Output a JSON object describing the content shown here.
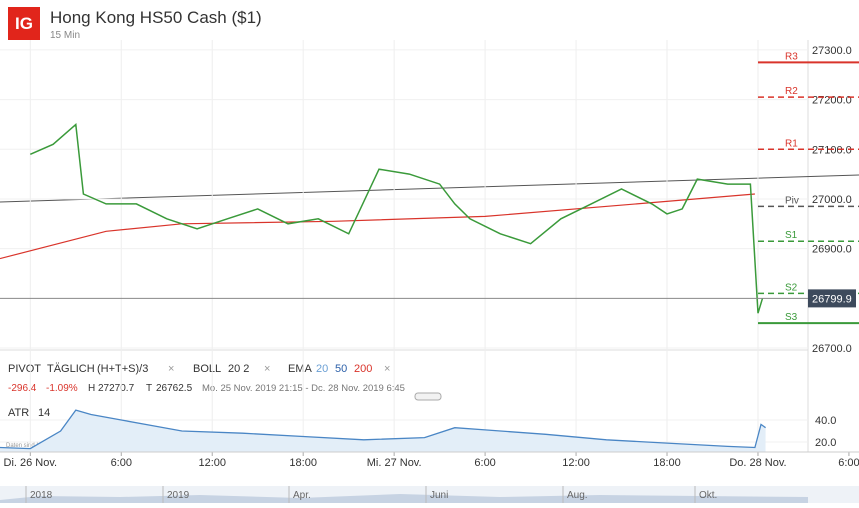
{
  "header": {
    "logo": "IG",
    "title": "Hong Kong HS50 Cash ($1)",
    "interval": "15 Min"
  },
  "legend": {
    "pivot": "PIVOT",
    "pivot_type": "TÄGLICH",
    "pivot_formula": "(H+T+S)/3",
    "boll": "BOLL",
    "boll_params": "20 2",
    "ema": "EMA",
    "ema_periods": [
      "20",
      "50",
      "200"
    ],
    "close_sign": "×"
  },
  "stats": {
    "change": "-296.4",
    "change_pct": "-1.09%",
    "high_label": "H",
    "high": "27270.7",
    "low_label": "T",
    "low": "26762.5",
    "range": "Mo. 25 Nov. 2019 21:15 - Dc. 28 Nov. 2019 6:45"
  },
  "chart_data": {
    "type": "line",
    "x": [
      0,
      1.5,
      3,
      3.5,
      5,
      7,
      9,
      11,
      13,
      15,
      17,
      19,
      21,
      23,
      25,
      27,
      28,
      29,
      31,
      33,
      35,
      37,
      39,
      41,
      42,
      43,
      44,
      46,
      47.5,
      48,
      48.3
    ],
    "values": [
      27090,
      27110,
      27150,
      27010,
      26990,
      26990,
      26960,
      26940,
      26960,
      26980,
      26950,
      26960,
      26930,
      27060,
      27050,
      27030,
      26990,
      26960,
      26930,
      26910,
      26960,
      26990,
      27020,
      26990,
      26970,
      26980,
      27040,
      27030,
      27030,
      26770,
      26800
    ],
    "ema200_x": [
      -2,
      5,
      10,
      20,
      30,
      40,
      47.8
    ],
    "ema200": [
      26880,
      26935,
      26950,
      26955,
      26965,
      26990,
      27010
    ],
    "color": "#3a9a3a",
    "ema200_color": "#d9342b",
    "xlim": [
      -2,
      51.3
    ],
    "ylim": [
      26696,
      27320
    ],
    "xticks": [
      {
        "value": 0,
        "label": "Di. 26 Nov."
      },
      {
        "value": 6,
        "label": "6:00"
      },
      {
        "value": 12,
        "label": "12:00"
      },
      {
        "value": 18,
        "label": "18:00"
      },
      {
        "value": 24,
        "label": "Mi. 27 Nov."
      },
      {
        "value": 30,
        "label": "6:00"
      },
      {
        "value": 36,
        "label": "12:00"
      },
      {
        "value": 42,
        "label": "18:00"
      },
      {
        "value": 48,
        "label": "Do. 28 Nov."
      },
      {
        "value": 54,
        "label": "6:00"
      }
    ],
    "yticks": [
      {
        "value": 27300,
        "label": "27300.0"
      },
      {
        "value": 27200,
        "label": "27200.0"
      },
      {
        "value": 27100,
        "label": "27100.0"
      },
      {
        "value": 27000,
        "label": "27000.0"
      },
      {
        "value": 26900,
        "label": "26900.0"
      },
      {
        "value": 26700,
        "label": "26700.0"
      }
    ],
    "pivots": [
      {
        "label": "R3",
        "value": 27275,
        "color": "#d9342b"
      },
      {
        "label": "R2",
        "value": 27205,
        "color": "#d9342b"
      },
      {
        "label": "R1",
        "value": 27100,
        "color": "#d9342b"
      },
      {
        "label": "Piv",
        "value": 26985,
        "color": "#555555"
      },
      {
        "label": "S1",
        "value": 26915,
        "color": "#3a9a3a"
      },
      {
        "label": "S2",
        "value": 26810,
        "color": "#3a9a3a"
      },
      {
        "label": "S3",
        "value": 26750,
        "color": "#3a9a3a"
      }
    ],
    "current": {
      "value": 26799.9,
      "label": "26799.9"
    }
  },
  "atr": {
    "label": "ATR",
    "period": "14",
    "note": "Daten sind Indikativ",
    "x": [
      -2,
      0,
      2,
      3,
      4,
      6,
      8,
      10,
      14,
      18,
      22,
      26,
      28,
      30,
      34,
      38,
      42,
      46,
      47.8,
      48.2,
      48.5
    ],
    "values": [
      15,
      14,
      30,
      49,
      45,
      40,
      35,
      30,
      28,
      25,
      22,
      24,
      33,
      31,
      27,
      22,
      19,
      16,
      15,
      36,
      33
    ],
    "ylim": [
      10.9,
      55.5
    ],
    "yticks": [
      {
        "value": 40,
        "label": "40.0"
      },
      {
        "value": 20,
        "label": "20.0"
      }
    ]
  },
  "navigator": [
    "2018",
    "2019",
    "Apr.",
    "Juni",
    "Aug.",
    "Okt."
  ]
}
